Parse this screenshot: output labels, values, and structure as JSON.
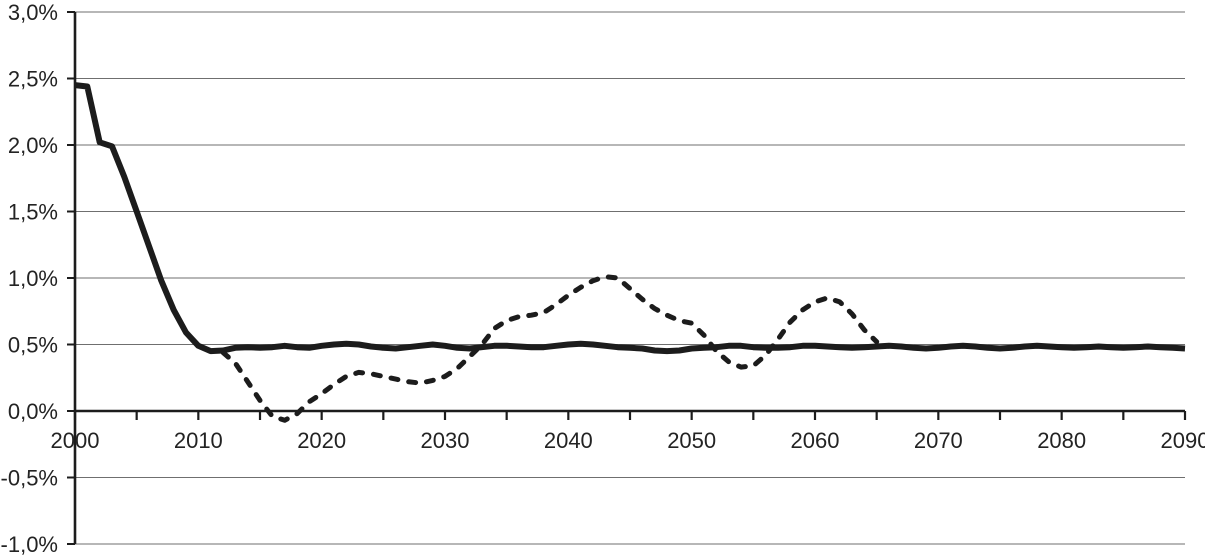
{
  "chart_data": {
    "type": "line",
    "title": "",
    "legend": "none",
    "grid": true,
    "colors": {
      "line": "#1c1c1c",
      "axis": "#1c1c1c",
      "gridline": "#6f6f6f",
      "label": "#232323",
      "background": "#ffffff"
    },
    "x_axis": {
      "min": 2000,
      "max": 2090,
      "major_tick_interval": 10,
      "minor_tick_interval": 5,
      "tick_labels": [
        "2000",
        "2010",
        "2020",
        "2030",
        "2040",
        "2050",
        "2060",
        "2070",
        "2080",
        "2090"
      ]
    },
    "y_axis": {
      "min": -1.0,
      "max": 3.0,
      "tick_interval": 0.5,
      "unit": "%",
      "decimal_separator": ",",
      "tick_values": [
        3.0,
        2.5,
        2.0,
        1.5,
        1.0,
        0.5,
        0.0,
        -0.5,
        -1.0
      ],
      "tick_labels": [
        "3,0%",
        "2,5%",
        "2,0%",
        "1,5%",
        "1,0%",
        "0,5%",
        "0,0%",
        "-0,5%",
        "-1,0%"
      ]
    },
    "series": [
      {
        "name": "solid-line",
        "style": "solid",
        "stroke_width": 6,
        "start_year": 2000,
        "values": [
          2.45,
          2.44,
          2.02,
          1.99,
          1.76,
          1.5,
          1.24,
          0.98,
          0.76,
          0.59,
          0.49,
          0.45,
          0.455,
          0.475,
          0.48,
          0.475,
          0.48,
          0.49,
          0.48,
          0.475,
          0.49,
          0.5,
          0.505,
          0.5,
          0.485,
          0.475,
          0.47,
          0.48,
          0.49,
          0.5,
          0.49,
          0.475,
          0.47,
          0.48,
          0.49,
          0.49,
          0.485,
          0.48,
          0.48,
          0.49,
          0.5,
          0.505,
          0.5,
          0.49,
          0.48,
          0.475,
          0.47,
          0.455,
          0.45,
          0.455,
          0.47,
          0.475,
          0.48,
          0.49,
          0.49,
          0.48,
          0.475,
          0.475,
          0.48,
          0.49,
          0.49,
          0.485,
          0.48,
          0.475,
          0.48,
          0.485,
          0.49,
          0.485,
          0.475,
          0.47,
          0.475,
          0.485,
          0.49,
          0.485,
          0.475,
          0.47,
          0.475,
          0.485,
          0.49,
          0.485,
          0.48,
          0.475,
          0.48,
          0.485,
          0.48,
          0.475,
          0.48,
          0.485,
          0.48,
          0.475,
          0.47
        ]
      },
      {
        "name": "dashed-line",
        "style": "dashed",
        "stroke_width": 5,
        "start_year": 2012,
        "values": [
          0.44,
          0.36,
          0.22,
          0.08,
          -0.04,
          -0.07,
          -0.02,
          0.07,
          0.13,
          0.2,
          0.26,
          0.29,
          0.28,
          0.26,
          0.24,
          0.22,
          0.21,
          0.23,
          0.26,
          0.32,
          0.41,
          0.5,
          0.62,
          0.68,
          0.71,
          0.72,
          0.74,
          0.8,
          0.87,
          0.93,
          0.98,
          1.01,
          1.0,
          0.92,
          0.84,
          0.77,
          0.72,
          0.68,
          0.66,
          0.57,
          0.45,
          0.37,
          0.33,
          0.34,
          0.42,
          0.54,
          0.67,
          0.76,
          0.82,
          0.85,
          0.82,
          0.73,
          0.61,
          0.52
        ]
      }
    ]
  }
}
